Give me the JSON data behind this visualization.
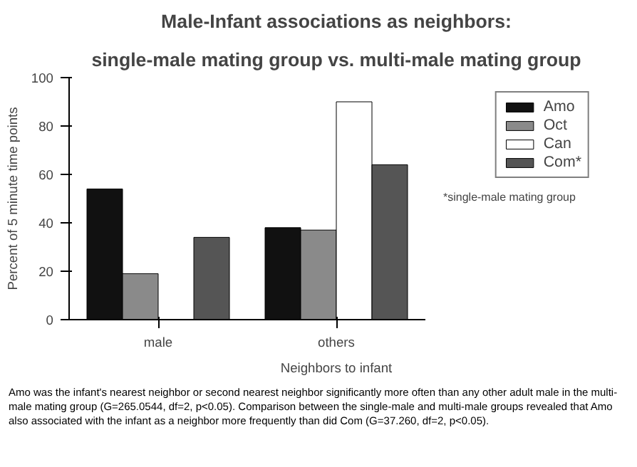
{
  "chart_data": {
    "type": "bar",
    "title": "Male-Infant associations as neighbors:",
    "subtitle": "single-male mating group vs. multi-male mating group",
    "xlabel": "Neighbors to infant",
    "ylabel": "Percent of 5 minute time points",
    "categories": [
      "male",
      "others"
    ],
    "series": [
      {
        "name": "Amo",
        "color": "#111111",
        "values": [
          54,
          38
        ]
      },
      {
        "name": "Oct",
        "color": "#8a8a8a",
        "values": [
          19,
          37
        ]
      },
      {
        "name": "Can",
        "color": "#ffffff",
        "values": [
          null,
          90
        ]
      },
      {
        "name": "Com*",
        "color": "#555555",
        "values": [
          34,
          64
        ]
      }
    ],
    "ylim": [
      0,
      100
    ],
    "yticks": [
      0,
      20,
      40,
      60,
      80,
      100
    ],
    "grid": false,
    "legend": "right",
    "annotations": [
      "*single-male mating group",
      "Amo was the infant's nearest neighbor or second nearest neighbor significantly more often than any other adult male in the multi-male mating group (G=265.0544, df=2, p<0.05).  Comparison between the single-male and multi-male groups revealed that Amo also associated with the infant as a neighbor more frequently than did Com (G=37.260, df=2, p<0.05)."
    ]
  }
}
